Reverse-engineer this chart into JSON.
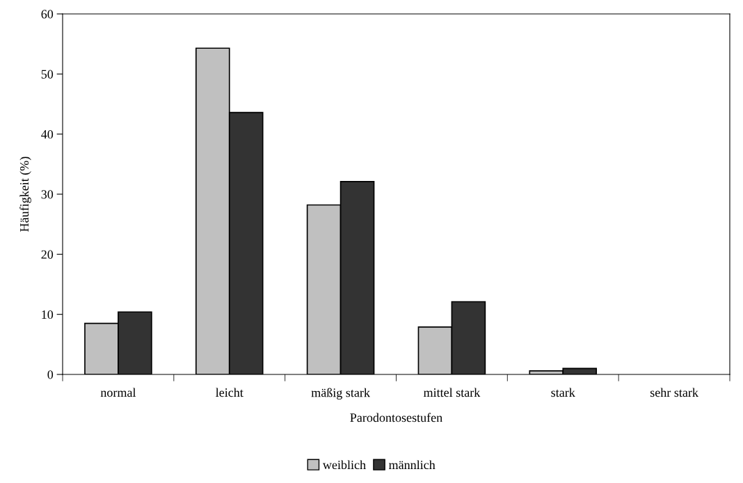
{
  "chart_data": {
    "type": "bar",
    "xlabel": "Parodontosestufen",
    "ylabel": "Häufigkeit (%)",
    "categories": [
      "normal",
      "leicht",
      "mäßig stark",
      "mittel stark",
      "stark",
      "sehr stark"
    ],
    "series": [
      {
        "name": "weiblich",
        "color": "#c0c0c0",
        "values": [
          8.5,
          54.3,
          28.2,
          7.9,
          0.6,
          0
        ]
      },
      {
        "name": "männlich",
        "color": "#333333",
        "values": [
          10.4,
          43.6,
          32.1,
          12.1,
          1.0,
          0
        ]
      }
    ],
    "ylim": [
      0,
      60
    ],
    "yticks": [
      0,
      10,
      20,
      30,
      40,
      50,
      60
    ],
    "grid": false,
    "legend": "bottom"
  }
}
